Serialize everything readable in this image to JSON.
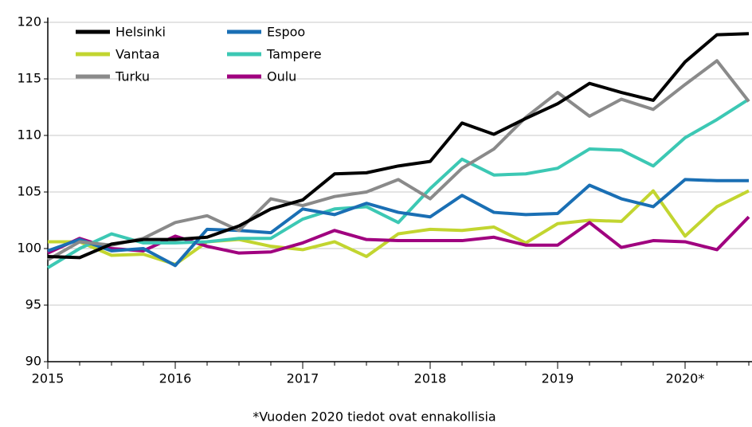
{
  "chart_data": {
    "type": "line",
    "annotations": [
      "*Vuoden 2020 tiedot ovat ennakollisia"
    ],
    "categories": [
      "2015",
      null,
      null,
      null,
      "2016",
      null,
      null,
      null,
      "2017",
      null,
      null,
      null,
      "2018",
      null,
      null,
      null,
      "2019",
      null,
      null,
      null,
      "2020*",
      null,
      null
    ],
    "series": [
      {
        "name": "Helsinki",
        "color": "#000000",
        "values": [
          99.3,
          99.2,
          100.4,
          100.8,
          100.8,
          101.0,
          102.0,
          103.5,
          104.3,
          106.6,
          106.7,
          107.3,
          107.7,
          111.1,
          110.1,
          111.5,
          112.8,
          114.6,
          113.8,
          113.1,
          116.5,
          118.9,
          119.0
        ]
      },
      {
        "name": "Espoo",
        "color": "#1a6fb4",
        "values": [
          99.8,
          100.8,
          99.8,
          100.0,
          98.5,
          101.7,
          101.6,
          101.4,
          103.5,
          103.0,
          104.0,
          103.2,
          102.8,
          104.7,
          103.2,
          103.0,
          103.1,
          105.6,
          104.4,
          103.7,
          106.1,
          106.0,
          106.0
        ]
      },
      {
        "name": "Vantaa",
        "color": "#c2d530",
        "values": [
          100.6,
          100.6,
          99.4,
          99.5,
          98.6,
          100.6,
          100.8,
          100.2,
          99.9,
          100.6,
          99.3,
          101.3,
          101.7,
          101.6,
          101.9,
          100.5,
          102.2,
          102.5,
          102.4,
          105.1,
          101.1,
          103.7,
          105.1
        ]
      },
      {
        "name": "Tampere",
        "color": "#3cc8b4",
        "values": [
          98.3,
          100.0,
          101.3,
          100.5,
          100.5,
          100.6,
          100.9,
          100.9,
          102.6,
          103.5,
          103.7,
          102.3,
          105.3,
          107.9,
          106.5,
          106.6,
          107.1,
          108.8,
          108.7,
          107.3,
          109.8,
          111.4,
          113.2
        ]
      },
      {
        "name": "Turku",
        "color": "#8a8a8a",
        "values": [
          99.0,
          100.6,
          100.3,
          100.9,
          102.3,
          102.9,
          101.6,
          104.4,
          103.8,
          104.6,
          105.0,
          106.1,
          104.4,
          107.1,
          108.8,
          111.6,
          113.8,
          111.7,
          113.2,
          112.3,
          114.5,
          116.6,
          113.0
        ]
      },
      {
        "name": "Oulu",
        "color": "#a0007f",
        "values": [
          99.6,
          100.9,
          100.0,
          99.8,
          101.1,
          100.2,
          99.6,
          99.7,
          100.5,
          101.6,
          100.8,
          100.7,
          100.7,
          100.7,
          101.0,
          100.3,
          100.3,
          102.3,
          100.1,
          100.7,
          100.6,
          99.9,
          102.8
        ]
      }
    ],
    "ylim": [
      90,
      120
    ],
    "yticks": [
      90,
      95,
      100,
      105,
      110,
      115,
      120
    ],
    "grid": true
  }
}
